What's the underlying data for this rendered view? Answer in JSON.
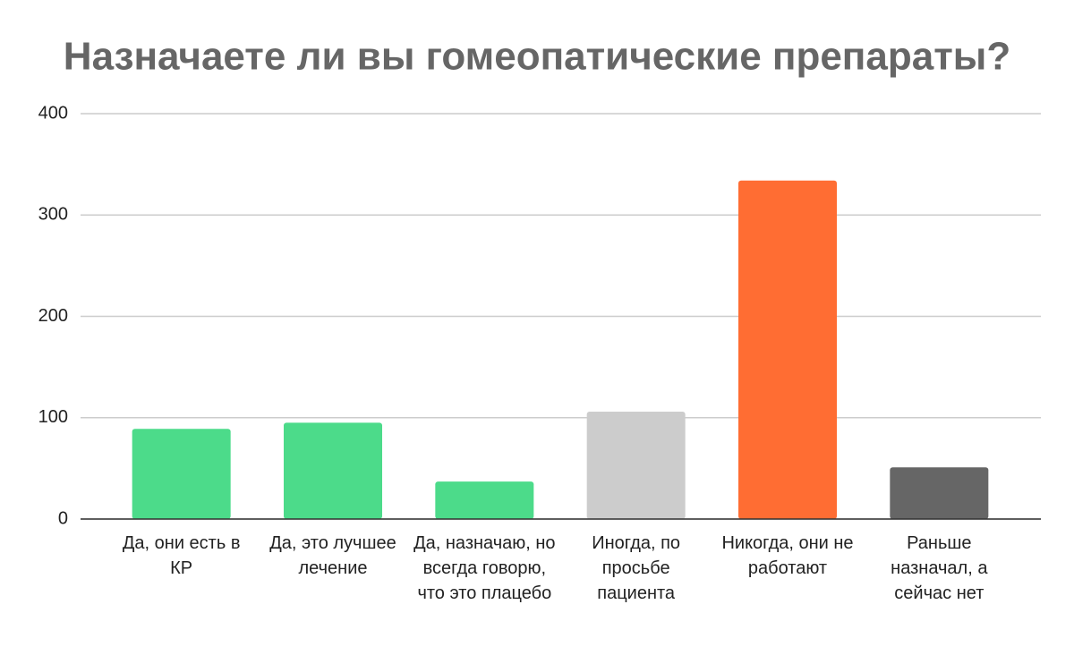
{
  "chart_data": {
    "type": "bar",
    "title": "Назначаете ли вы гомеопатические препараты?",
    "categories": [
      "Да, они есть в КР",
      "Да, это лучшее лечение",
      "Да, назначаю, но всегда говорю, что это плацебо",
      "Иногда, по просьбе пациента",
      "Никогда, они не работают",
      "Раньше назначал, а сейчас нет"
    ],
    "values": [
      89,
      95,
      37,
      106,
      334,
      51
    ],
    "colors": [
      "#4cdb8a",
      "#4cdb8a",
      "#4cdb8a",
      "#cccccc",
      "#ff6d33",
      "#666666"
    ],
    "ylim": [
      0,
      400
    ],
    "yticks": [
      0,
      100,
      200,
      300,
      400
    ],
    "grid": true
  }
}
